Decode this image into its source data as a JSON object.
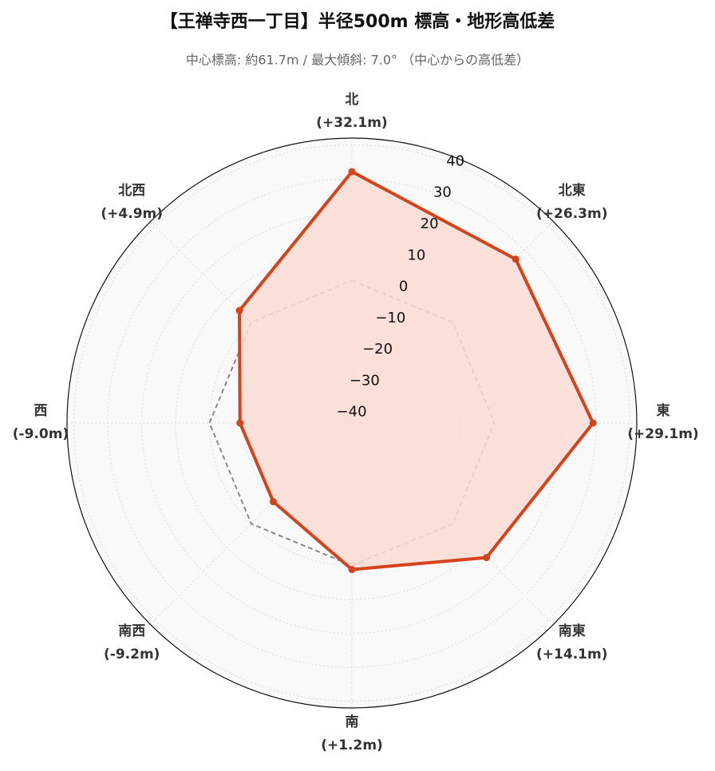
{
  "chart_data": {
    "type": "radar",
    "title": "【王禅寺西一丁目】半径500m 標高・地形高低差",
    "subtitle": "中心標高: 約61.7m / 最大傾斜: 7.0° （中心からの高低差）",
    "categories": [
      "北",
      "北東",
      "東",
      "南東",
      "南",
      "南西",
      "西",
      "北西"
    ],
    "series": [
      {
        "color": "#d4441c",
        "fill": "#fcdcd3",
        "values": [
          32.1,
          26.3,
          29.1,
          14.1,
          1.2,
          -9.2,
          -9.0,
          4.9
        ],
        "value_labels": [
          "(+32.1m)",
          "(+26.3m)",
          "(+29.1m)",
          "(+14.1m)",
          "(+1.2m)",
          "(-9.2m)",
          "(-9.0m)",
          "(+4.9m)"
        ]
      }
    ],
    "reference_line": 0,
    "rlim": [
      -42,
      42
    ],
    "rticks": [
      {
        "value": -40,
        "label": "−40"
      },
      {
        "value": -30,
        "label": "−30"
      },
      {
        "value": -20,
        "label": "−20"
      },
      {
        "value": -10,
        "label": "−10"
      },
      0,
      10,
      20,
      30,
      40
    ],
    "grid": true
  }
}
